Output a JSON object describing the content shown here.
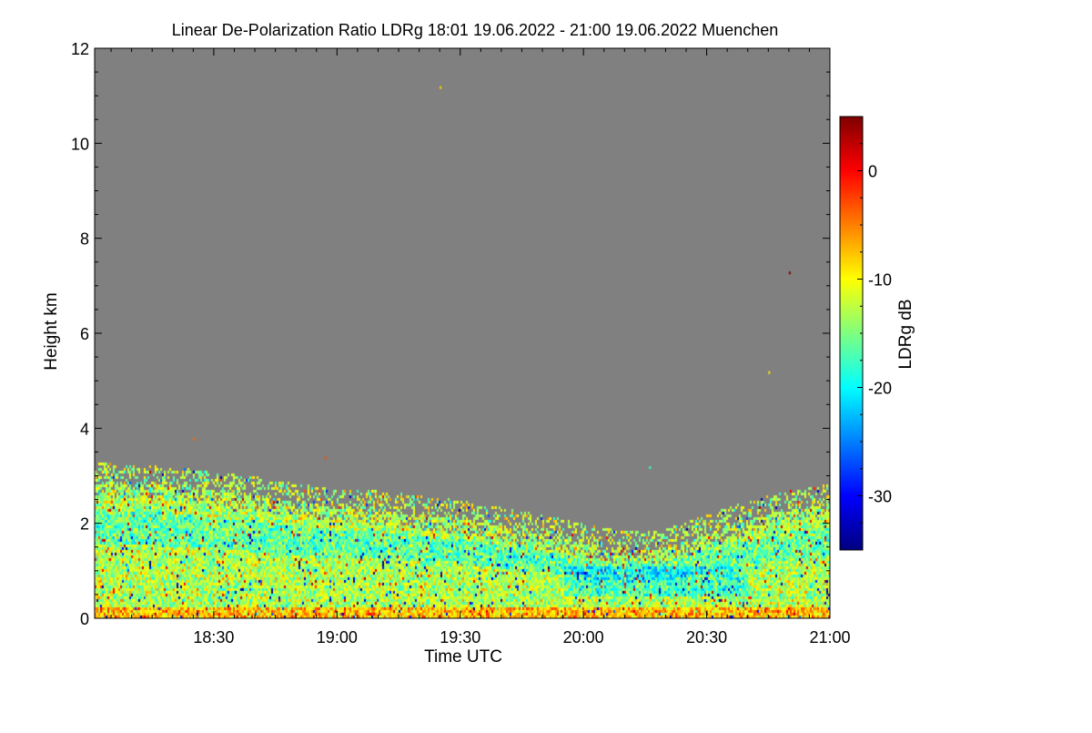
{
  "chart_data": {
    "type": "heatmap",
    "title": "Linear De-Polarization Ratio LDRg   18:01 19.06.2022 - 21:00 19.06.2022 Muenchen",
    "xlabel": "Time UTC",
    "ylabel": "Height km",
    "xlim_minutes": [
      1081,
      1260
    ],
    "ylim": [
      0,
      12
    ],
    "x_ticks": [
      {
        "label": "18:30",
        "value": 1110
      },
      {
        "label": "19:00",
        "value": 1140
      },
      {
        "label": "19:30",
        "value": 1170
      },
      {
        "label": "20:00",
        "value": 1200
      },
      {
        "label": "20:30",
        "value": 1230
      },
      {
        "label": "21:00",
        "value": 1260
      }
    ],
    "y_ticks": [
      0,
      2,
      4,
      6,
      8,
      10,
      12
    ],
    "colorbar": {
      "label": "LDRg dB",
      "range": [
        -35,
        5
      ],
      "ticks": [
        "0",
        "-10",
        "-20",
        "-30"
      ],
      "tick_values": [
        0,
        -10,
        -20,
        -30
      ],
      "colormap": [
        "#00007f",
        "#0000ff",
        "#007fff",
        "#00ffff",
        "#7fff7f",
        "#ffff00",
        "#ff7f00",
        "#ff0000",
        "#7f0000"
      ]
    },
    "background_color": "#808080",
    "layer_top_profile_km": [
      {
        "time": 1081,
        "top": 2.9
      },
      {
        "time": 1090,
        "top": 2.85
      },
      {
        "time": 1100,
        "top": 2.8
      },
      {
        "time": 1110,
        "top": 2.7
      },
      {
        "time": 1120,
        "top": 2.6
      },
      {
        "time": 1130,
        "top": 2.45
      },
      {
        "time": 1140,
        "top": 2.35
      },
      {
        "time": 1150,
        "top": 2.3
      },
      {
        "time": 1160,
        "top": 2.2
      },
      {
        "time": 1170,
        "top": 2.1
      },
      {
        "time": 1180,
        "top": 1.95
      },
      {
        "time": 1190,
        "top": 1.8
      },
      {
        "time": 1200,
        "top": 1.6
      },
      {
        "time": 1210,
        "top": 1.45
      },
      {
        "time": 1220,
        "top": 1.5
      },
      {
        "time": 1230,
        "top": 1.8
      },
      {
        "time": 1240,
        "top": 2.1
      },
      {
        "time": 1250,
        "top": 2.3
      },
      {
        "time": 1260,
        "top": 2.45
      }
    ],
    "layer_ldr_mean_dB": -13
  }
}
